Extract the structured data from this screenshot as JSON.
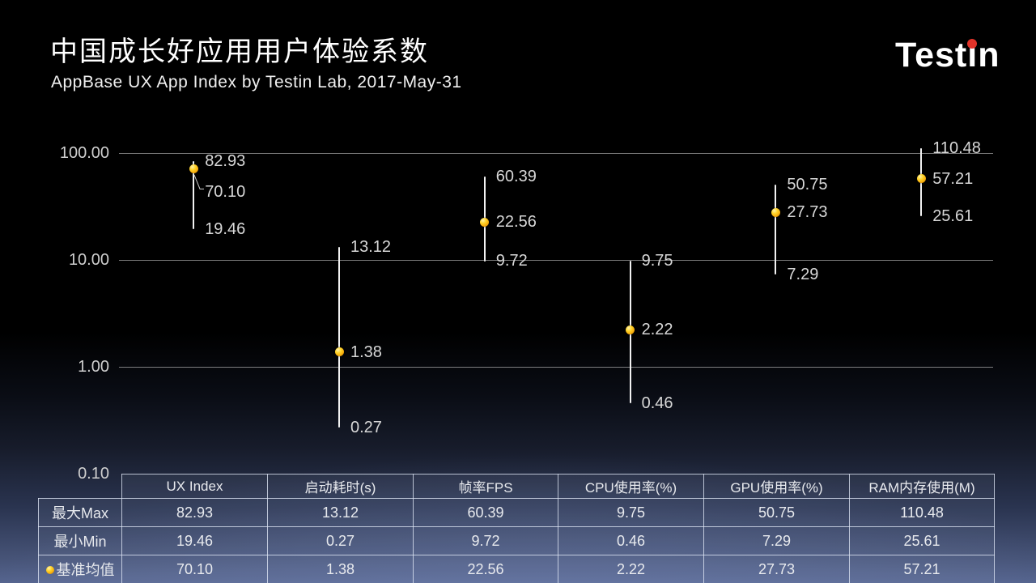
{
  "header": {
    "title": "中国成长好应用用户体验系数",
    "subtitle": "AppBase UX App Index by Testin Lab, 2017-May-31"
  },
  "brand": {
    "name": "Testin",
    "front": "Test",
    "dotless_i": "ı",
    "rest": "n",
    "dot_color": "#e23329"
  },
  "chart_data": {
    "type": "line",
    "subtype": "high-low-marker",
    "scale": "log10",
    "ylim": [
      0.1,
      100
    ],
    "yticks": [
      100,
      10,
      1,
      0.1
    ],
    "ytick_labels": [
      "100.00",
      "10.00",
      "1.00",
      "0.10"
    ],
    "gridline_values": [
      100,
      10,
      1
    ],
    "grid": "horizontal-only",
    "categories": [
      "UX Index",
      "启动耗时(s)",
      "帧率FPS",
      "CPU使用率(%)",
      "GPU使用率(%)",
      "RAM内存使用(M)"
    ],
    "series": [
      {
        "name": "最大Max",
        "values": [
          82.93,
          13.12,
          60.39,
          9.75,
          50.75,
          110.48
        ]
      },
      {
        "name": "最小Min",
        "values": [
          19.46,
          0.27,
          9.72,
          0.46,
          7.29,
          25.61
        ]
      },
      {
        "name": "基准均值",
        "values": [
          70.1,
          1.38,
          22.56,
          2.22,
          27.73,
          57.21
        ]
      }
    ],
    "marker_series": "基准均值",
    "marker_color": "#ffc000",
    "line_color": "#f2f2f2",
    "label_color": "#d8d8d8",
    "legend_position": "none"
  },
  "table": {
    "columns": [
      "UX Index",
      "启动耗时(s)",
      "帧率FPS",
      "CPU使用率(%)",
      "GPU使用率(%)",
      "RAM内存使用(M)"
    ],
    "rows": [
      {
        "label": "最大Max",
        "marker": false,
        "values": [
          "82.93",
          "13.12",
          "60.39",
          "9.75",
          "50.75",
          "110.48"
        ]
      },
      {
        "label": "最小Min",
        "marker": false,
        "values": [
          "19.46",
          "0.27",
          "9.72",
          "0.46",
          "7.29",
          "25.61"
        ]
      },
      {
        "label": "基准均值",
        "marker": true,
        "values": [
          "70.10",
          "1.38",
          "22.56",
          "2.22",
          "27.73",
          "57.21"
        ]
      }
    ]
  }
}
